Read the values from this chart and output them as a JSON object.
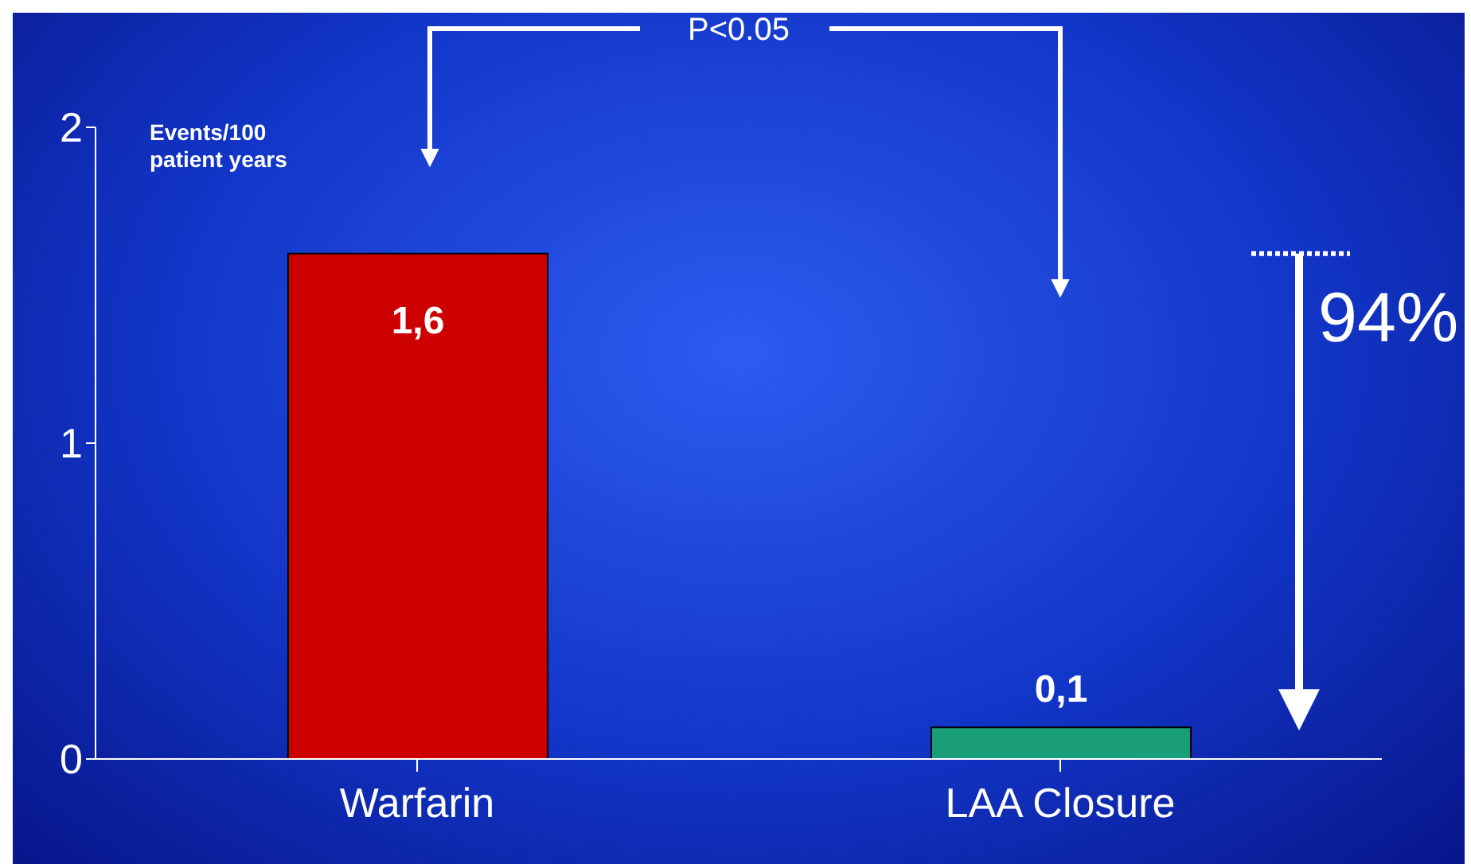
{
  "chart_data": {
    "type": "bar",
    "ylabel": "Events/100 patient years",
    "categories": [
      "Warfarin",
      "LAA Closure"
    ],
    "values": [
      1.6,
      0.1
    ],
    "colors": [
      "#cc0000",
      "#1a9e78"
    ],
    "value_labels": [
      "1,6",
      "0,1"
    ],
    "ylim": [
      0,
      2
    ],
    "yticks": [
      0,
      1,
      2
    ],
    "annotations": [
      "P<0.05",
      "94%"
    ]
  }
}
